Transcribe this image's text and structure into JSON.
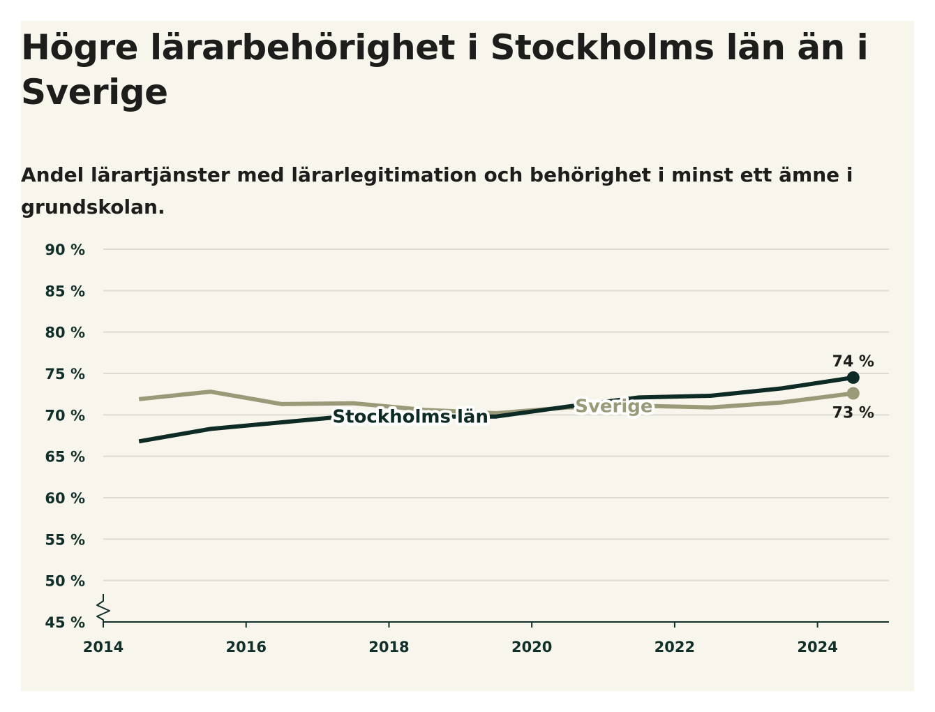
{
  "title": "Högre lärarbehörighet i Stockholms län än i Sverige",
  "subtitle": "Andel lärartjänster med lärarlegitimation och behörighet i minst ett ämne i grundskolan.",
  "chart_data": {
    "type": "line",
    "title": "Högre lärarbehörighet i Stockholms län än i Sverige",
    "subtitle": "Andel lärartjänster med lärarlegitimation och behörighet i minst ett ämne i grundskolan.",
    "xlabel": "",
    "ylabel": "",
    "xlim": [
      2014,
      2025
    ],
    "ylim": [
      45,
      90
    ],
    "x_ticks": [
      2014,
      2016,
      2018,
      2020,
      2022,
      2024
    ],
    "x_tick_labels": [
      "2014",
      "2016",
      "2018",
      "2020",
      "2022",
      "2024"
    ],
    "y_ticks": [
      45,
      50,
      55,
      60,
      65,
      70,
      75,
      80,
      85,
      90
    ],
    "y_tick_labels": [
      "45 %",
      "50 %",
      "55 %",
      "60 %",
      "65 %",
      "70 %",
      "75 %",
      "80 %",
      "85 %",
      "90 %"
    ],
    "axis_break": true,
    "grid": true,
    "legend": "inline labels",
    "series": [
      {
        "name": "Sverige",
        "color": "#9b9a78",
        "x": [
          2014.5,
          2015.5,
          2016.5,
          2017.5,
          2018.5,
          2019.5,
          2020.5,
          2021.5,
          2022.5,
          2023.5,
          2024.5
        ],
        "values": [
          71.9,
          72.8,
          71.3,
          71.4,
          70.6,
          70.2,
          70.9,
          71.1,
          70.9,
          71.5,
          72.6
        ],
        "end_label": "73 %"
      },
      {
        "name": "Stockholms län",
        "color": "#0d2a24",
        "x": [
          2014.5,
          2015.5,
          2016.5,
          2017.5,
          2018.5,
          2019.5,
          2020.5,
          2021.5,
          2022.5,
          2023.5,
          2024.5
        ],
        "values": [
          66.8,
          68.3,
          69.1,
          69.9,
          69.8,
          69.8,
          71.0,
          72.1,
          72.3,
          73.2,
          74.5
        ],
        "end_label": "74 %"
      }
    ]
  }
}
